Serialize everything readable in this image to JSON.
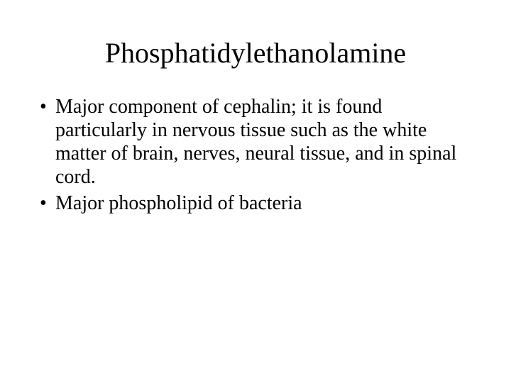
{
  "slide": {
    "title": "Phosphatidylethanolamine",
    "bullets": [
      "Major component of cephalin; it is found particularly in nervous tissue such as the white matter of brain, nerves, neural tissue, and in spinal cord.",
      "Major phospholipid of bacteria"
    ],
    "colors": {
      "background": "#ffffff",
      "text": "#000000"
    },
    "typography": {
      "font_family": "Times New Roman",
      "title_fontsize": 40,
      "body_fontsize": 28
    }
  }
}
